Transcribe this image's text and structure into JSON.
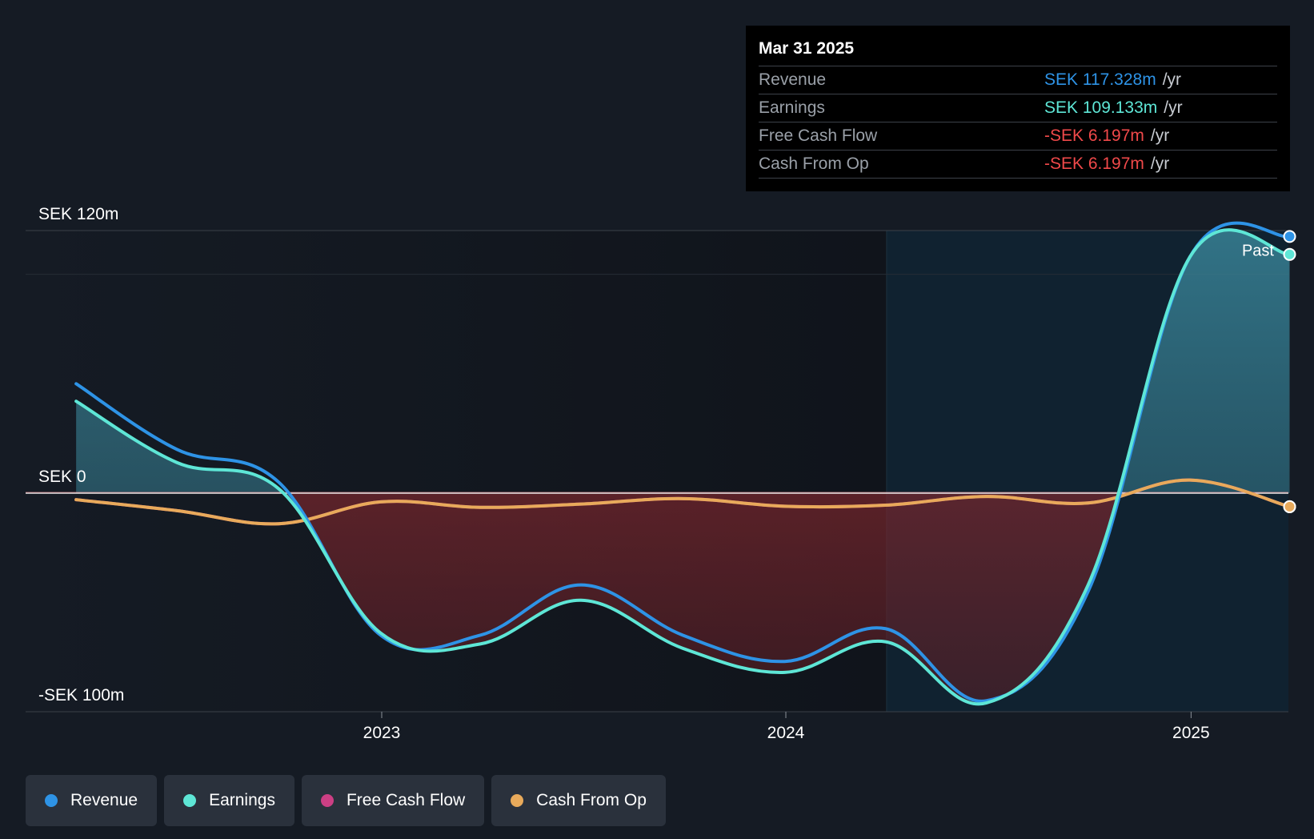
{
  "tooltip": {
    "date": "Mar 31 2025",
    "rows": [
      {
        "name": "Revenue",
        "value": "SEK 117.328m",
        "unit": "/yr",
        "color": "#2e93e6"
      },
      {
        "name": "Earnings",
        "value": "SEK 109.133m",
        "unit": "/yr",
        "color": "#5ee6d6"
      },
      {
        "name": "Free Cash Flow",
        "value": "-SEK 6.197m",
        "unit": "/yr",
        "color": "#f0494a"
      },
      {
        "name": "Cash From Op",
        "value": "-SEK 6.197m",
        "unit": "/yr",
        "color": "#f0494a"
      }
    ]
  },
  "legend": [
    {
      "label": "Revenue",
      "color": "#2e93e6"
    },
    {
      "label": "Earnings",
      "color": "#5ee6d6"
    },
    {
      "label": "Free Cash Flow",
      "color": "#cc3f84"
    },
    {
      "label": "Cash From Op",
      "color": "#e8aa5b"
    }
  ],
  "chart_data": {
    "type": "line",
    "x_unit": "date",
    "y_unit": "SEK m",
    "yticks": [
      {
        "value": 120,
        "label": "SEK 120m"
      },
      {
        "value": 0,
        "label": "SEK 0"
      },
      {
        "value": -100,
        "label": "-SEK 100m"
      }
    ],
    "xticks": [
      {
        "value": "2023-01-01",
        "label": "2023"
      },
      {
        "value": "2024-01-01",
        "label": "2024"
      },
      {
        "value": "2025-01-01",
        "label": "2025"
      }
    ],
    "xlim": [
      "2022-04-01",
      "2025-04-10"
    ],
    "ylim": [
      -100,
      120
    ],
    "past_label": "Past",
    "forecast_divider": "2024-04-01",
    "series": [
      {
        "name": "Revenue",
        "color": "#2e93e6",
        "x": [
          "2022-03-31",
          "2022-06-30",
          "2022-09-30",
          "2022-12-31",
          "2023-03-31",
          "2023-06-30",
          "2023-09-30",
          "2023-12-31",
          "2024-03-31",
          "2024-06-30",
          "2024-09-30",
          "2024-12-31",
          "2025-03-31"
        ],
        "y": [
          50,
          20,
          5,
          -65,
          -65,
          -42,
          -65,
          -77,
          -62,
          -95,
          -45,
          108,
          117.3
        ]
      },
      {
        "name": "Earnings",
        "color": "#5ee6d6",
        "x": [
          "2022-03-31",
          "2022-06-30",
          "2022-09-30",
          "2022-12-31",
          "2023-03-31",
          "2023-06-30",
          "2023-09-30",
          "2023-12-31",
          "2024-03-31",
          "2024-06-30",
          "2024-09-30",
          "2024-12-31",
          "2025-03-31"
        ],
        "y": [
          42,
          14,
          2,
          -64,
          -69,
          -49,
          -71,
          -82,
          -68,
          -96,
          -42,
          108,
          109.1
        ]
      },
      {
        "name": "Free Cash Flow",
        "color": "#cc3f84",
        "x": [
          "2022-03-31",
          "2022-06-30",
          "2022-09-30",
          "2022-12-31",
          "2023-03-31",
          "2023-06-30",
          "2023-09-30",
          "2023-12-31",
          "2024-03-31",
          "2024-06-30",
          "2024-09-30",
          "2024-12-31",
          "2025-03-31"
        ],
        "y": [
          -3,
          -8,
          -14,
          -4,
          -6.5,
          -5,
          -2.5,
          -6,
          -5.5,
          -1.5,
          -4.5,
          6,
          -6.2
        ]
      },
      {
        "name": "Cash From Op",
        "color": "#e8aa5b",
        "x": [
          "2022-03-31",
          "2022-06-30",
          "2022-09-30",
          "2022-12-31",
          "2023-03-31",
          "2023-06-30",
          "2023-09-30",
          "2023-12-31",
          "2024-03-31",
          "2024-06-30",
          "2024-09-30",
          "2024-12-31",
          "2025-03-31"
        ],
        "y": [
          -3,
          -8,
          -14,
          -4,
          -6.5,
          -5,
          -2.5,
          -6,
          -5.5,
          -1.5,
          -4.5,
          6,
          -6.2
        ]
      }
    ]
  }
}
